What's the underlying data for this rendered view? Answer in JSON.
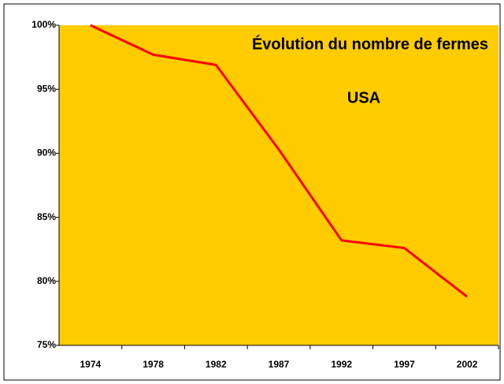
{
  "chart_data": {
    "type": "line",
    "title": "Évolution du nombre de fermes",
    "subtitle": "USA",
    "categories": [
      "1974",
      "1978",
      "1982",
      "1987",
      "1992",
      "1997",
      "2002"
    ],
    "series": [
      {
        "name": "USA",
        "color": "#ff0000",
        "values": [
          100,
          97.7,
          96.9,
          90.3,
          83.2,
          82.6,
          78.8
        ]
      }
    ],
    "ylim": [
      75,
      100
    ],
    "yticks": [
      {
        "value": 75,
        "label": "75%"
      },
      {
        "value": 80,
        "label": "80%"
      },
      {
        "value": 85,
        "label": "85%"
      },
      {
        "value": 90,
        "label": "90%"
      },
      {
        "value": 95,
        "label": "95%"
      },
      {
        "value": 100,
        "label": "100%"
      }
    ],
    "plot_background": "#ffcc00",
    "grid": false
  }
}
